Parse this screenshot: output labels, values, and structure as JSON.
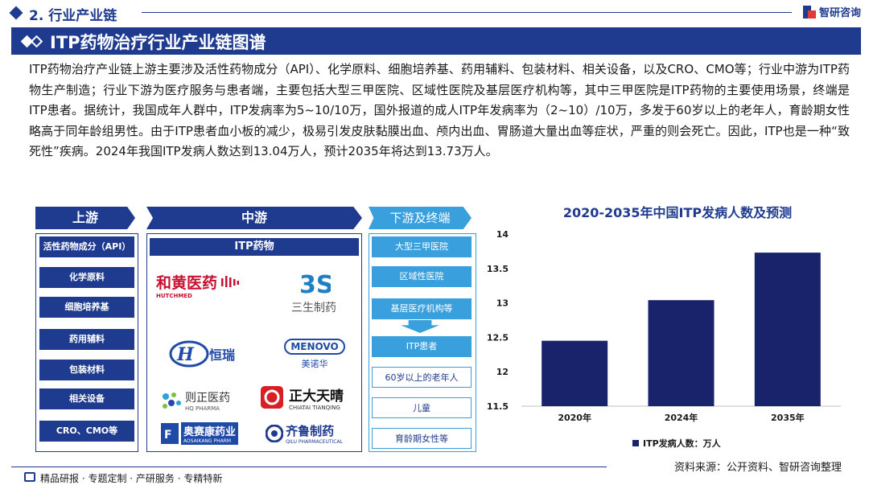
{
  "section": {
    "title": "2. 行业产业链"
  },
  "logo": {
    "text": "智研咨询"
  },
  "banner": {
    "title": "ITP药物治疗行业产业链图谱"
  },
  "paragraph": "ITP药物治疗产业链上游主要涉及活性药物成分（API）、化学原料、细胞培养基、药用辅料、包装材料、相关设备，以及CRO、CMO等；行业中游为ITP药物生产制造；行业下游为医疗服务与患者端，主要包括大型三甲医院、区域性医院及基层医疗机构等，其中三甲医院是ITP药物的主要使用场景，终端是ITP患者。据统计，我国成年人群中，ITP发病率为5~10/10万，国外报道的成人ITP年发病率为（2~10）/10万，多发于60岁以上的老年人，育龄期女性略高于同年龄组男性。由于ITP患者血小板的减少，极易引发皮肤黏膜出血、颅内出血、胃肠道大量出血等症状，严重的则会死亡。因此，ITP也是一种“致死性”疾病。2024年我国ITP发病人数达到13.04万人，预计2035年将达到13.73万人。",
  "chain": {
    "upstream": {
      "label": "上游",
      "items": [
        "活性药物成分（API）",
        "化学原料",
        "细胞培养基",
        "药用辅料",
        "包装材料",
        "相关设备",
        "CRO、CMO等"
      ]
    },
    "midstream": {
      "label": "中游",
      "header": "ITP药物",
      "companies": [
        {
          "name": "和黄医药",
          "sub": "HUTCHMED",
          "color": "#c8102e"
        },
        {
          "name": "三生制药",
          "sub": "",
          "color": "#555555"
        },
        {
          "name": "恒瑞",
          "sub": "",
          "color": "#1f4aa8"
        },
        {
          "name": "美诺华",
          "sub": "MENOVO",
          "color": "#1f4aa8"
        },
        {
          "name": "则正医药",
          "sub": "HQ PHARMA",
          "color": "#333333"
        },
        {
          "name": "正大天晴",
          "sub": "CHIATAI TIANQING",
          "color": "#111111"
        },
        {
          "name": "奥赛康药业",
          "sub": "AOSAIKANG PHARM",
          "color": "#1f4aa8"
        },
        {
          "name": "齐鲁制药",
          "sub": "QILU PHARMACEUTICAL",
          "color": "#1f3b8f"
        }
      ]
    },
    "downstream": {
      "label": "下游及终端",
      "items": [
        "大型三甲医院",
        "区域性医院",
        "基层医疗机构等",
        "ITP患者",
        "60岁以上的老年人",
        "儿童",
        "育龄期女性等"
      ]
    }
  },
  "chart_data": {
    "type": "bar",
    "title": "2020-2035年中国ITP发病人数及预测",
    "categories": [
      "2020年",
      "2024年",
      "2035年"
    ],
    "series": [
      {
        "name": "ITP发病人数：万人",
        "values": [
          12.45,
          13.04,
          13.73
        ]
      }
    ],
    "ylim": [
      11.5,
      14
    ],
    "yticks": [
      "11.5",
      "12",
      "12.5",
      "13",
      "13.5",
      "14"
    ],
    "color": "#18236b",
    "grid": false,
    "legend": "bottom"
  },
  "source": "资料来源：公开资料、智研咨询整理",
  "footer": {
    "text": "精品研报 · 专题定制 · 产研服务 · 专精特新"
  }
}
